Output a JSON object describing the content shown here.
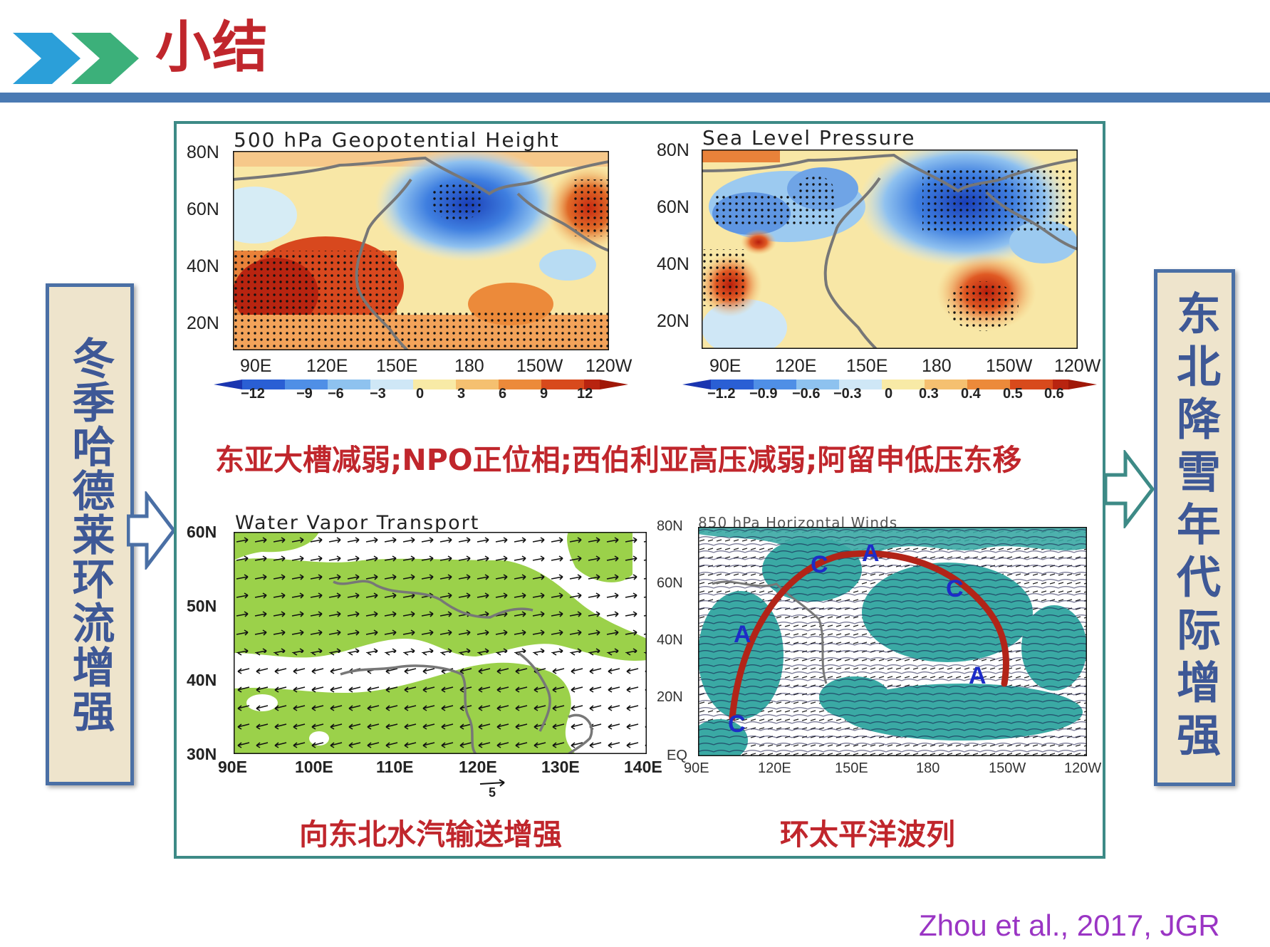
{
  "header": {
    "title": "小结",
    "chevron_colors": [
      "#2b9fd9",
      "#3cb07a"
    ],
    "bar_color": "#4a7ab3"
  },
  "left_box": {
    "text": "冬季哈德莱环流增强"
  },
  "right_box": {
    "text": "东北降雪年代际增强"
  },
  "panels": {
    "geopotential": {
      "title": "500 hPa Geopotential Height",
      "lat_labels": [
        "80N",
        "60N",
        "40N",
        "20N"
      ],
      "lon_labels": [
        "90E",
        "120E",
        "150E",
        "180",
        "150W",
        "120W"
      ],
      "colorbar_labels": [
        "−12",
        "−9",
        "−6",
        "−3",
        "0",
        "3",
        "6",
        "9",
        "12"
      ]
    },
    "slp": {
      "title": "Sea Level Pressure",
      "lat_labels": [
        "80N",
        "60N",
        "40N",
        "20N"
      ],
      "lon_labels": [
        "90E",
        "120E",
        "150E",
        "180",
        "150W",
        "120W"
      ],
      "colorbar_labels": [
        "−1.2",
        "−0.9",
        "−0.6",
        "−0.3",
        "0",
        "0.3",
        "0.4",
        "0.5",
        "0.6"
      ]
    },
    "vapor": {
      "title": "Water Vapor Transport",
      "lat_labels": [
        "60N",
        "50N",
        "40N",
        "30N"
      ],
      "lon_labels": [
        "90E",
        "100E",
        "110E",
        "120E",
        "130E",
        "140E"
      ],
      "ref_vector": "5"
    },
    "winds": {
      "title": "850 hPa Horizontal Winds",
      "lat_labels": [
        "80N",
        "60N",
        "40N",
        "20N",
        "EQ"
      ],
      "lon_labels": [
        "90E",
        "120E",
        "150E",
        "180",
        "150W",
        "120W"
      ],
      "markers": [
        "C",
        "A",
        "C",
        "A",
        "A",
        "C"
      ]
    }
  },
  "captions": {
    "middle": "东亚大槽减弱;NPO正位相;西伯利亚高压减弱;阿留申低压东移",
    "bottom_left": "向东北水汽输送增强",
    "bottom_right": "环太平洋波列"
  },
  "citation": "Zhou et al., 2017, JGR",
  "colors": {
    "title_red": "#c0262c",
    "box_border": "#4a6fa5",
    "box_fill": "#eee4cc",
    "frame_teal": "#3d8a86",
    "vapor_green": "#9bd14a",
    "wind_teal": "#3aa9a4",
    "citation_purple": "#9a35c4"
  }
}
